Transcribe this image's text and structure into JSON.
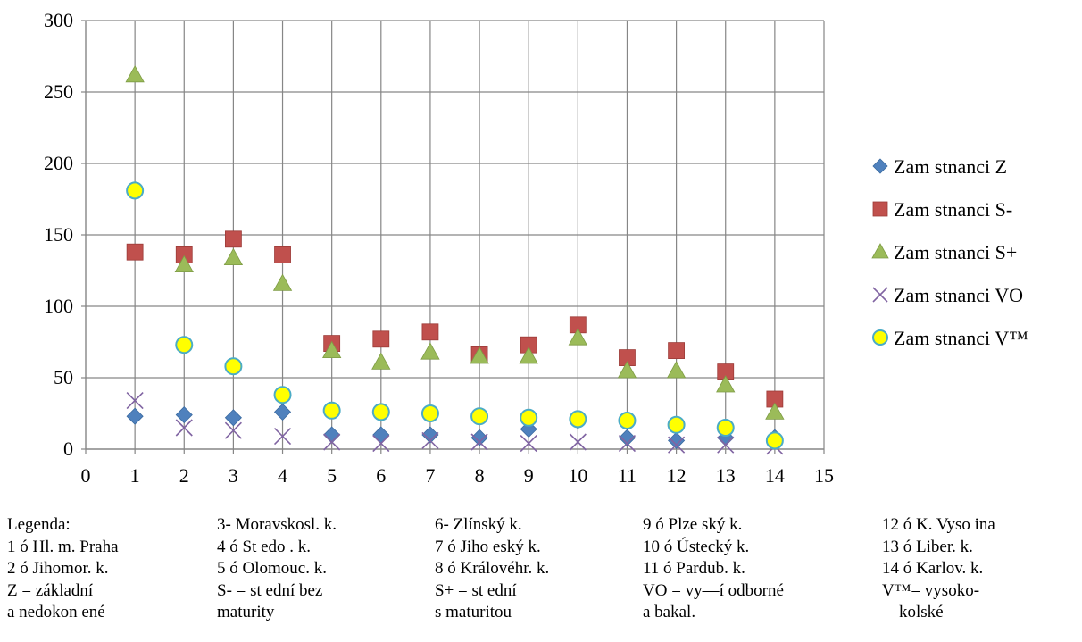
{
  "chart_data": {
    "type": "scatter",
    "title": "",
    "xlabel": "",
    "ylabel": "",
    "xlim": [
      0,
      15
    ],
    "ylim": [
      0,
      300
    ],
    "x_ticks": [
      "0",
      "1",
      "2",
      "3",
      "4",
      "5",
      "6",
      "7",
      "8",
      "9",
      "10",
      "11",
      "12",
      "13",
      "14",
      "15"
    ],
    "y_ticks": [
      "0",
      "50",
      "100",
      "150",
      "200",
      "250",
      "300"
    ],
    "grid": true,
    "legend_position": "right",
    "x": [
      1,
      2,
      3,
      4,
      5,
      6,
      7,
      8,
      9,
      10,
      11,
      12,
      13,
      14
    ],
    "series": [
      {
        "name": "Zam stnanci Z",
        "marker": "diamond",
        "color": "#4f81bd",
        "values": [
          23,
          24,
          22,
          26,
          10,
          10,
          10,
          8,
          14,
          20,
          8,
          6,
          8,
          8
        ]
      },
      {
        "name": "Zam stnanci S-",
        "marker": "square",
        "color": "#c0504d",
        "values": [
          138,
          136,
          147,
          136,
          74,
          77,
          82,
          66,
          73,
          87,
          64,
          69,
          54,
          35
        ]
      },
      {
        "name": "Zam stnanci S+",
        "marker": "triangle",
        "color": "#9bbb59",
        "values": [
          262,
          129,
          134,
          116,
          69,
          61,
          68,
          65,
          65,
          78,
          55,
          55,
          45,
          26
        ]
      },
      {
        "name": "Zam stnanci VO",
        "marker": "x",
        "color": "#8064a2",
        "values": [
          34,
          15,
          13,
          9,
          5,
          4,
          6,
          5,
          4,
          5,
          4,
          3,
          3,
          2
        ]
      },
      {
        "name": "Zam stnanci V™",
        "marker": "circle",
        "color": "#ffff00",
        "stroke": "#4bacc6",
        "values": [
          181,
          73,
          58,
          38,
          27,
          26,
          25,
          23,
          22,
          21,
          20,
          17,
          15,
          6
        ]
      }
    ]
  },
  "notes": {
    "columns": [
      [
        "Legenda:",
        "1 ó Hl. m. Praha",
        "2 ó Jihomor. k.",
        "Z = základní",
        "a nedokon ené"
      ],
      [
        "3- Moravskosl. k.",
        "4 ó St edo . k.",
        "5 ó Olomouc. k.",
        "S- = st ední bez",
        "maturity"
      ],
      [
        "6- Zlínský k.",
        "7 ó Jiho eský k.",
        "8 ó Královéhr. k.",
        "S+ = st ední",
        "s maturitou"
      ],
      [
        "9 ó Plze ský k.",
        "10 ó Ústecký k.",
        "11 ó Pardub. k.",
        "VO = vy—í odborné",
        "a bakal."
      ],
      [
        "12 ó K. Vyso ina",
        "13 ó Liber. k.",
        "14 ó Karlov. k.",
        "V™= vysoko-",
        "—kolské"
      ]
    ]
  }
}
